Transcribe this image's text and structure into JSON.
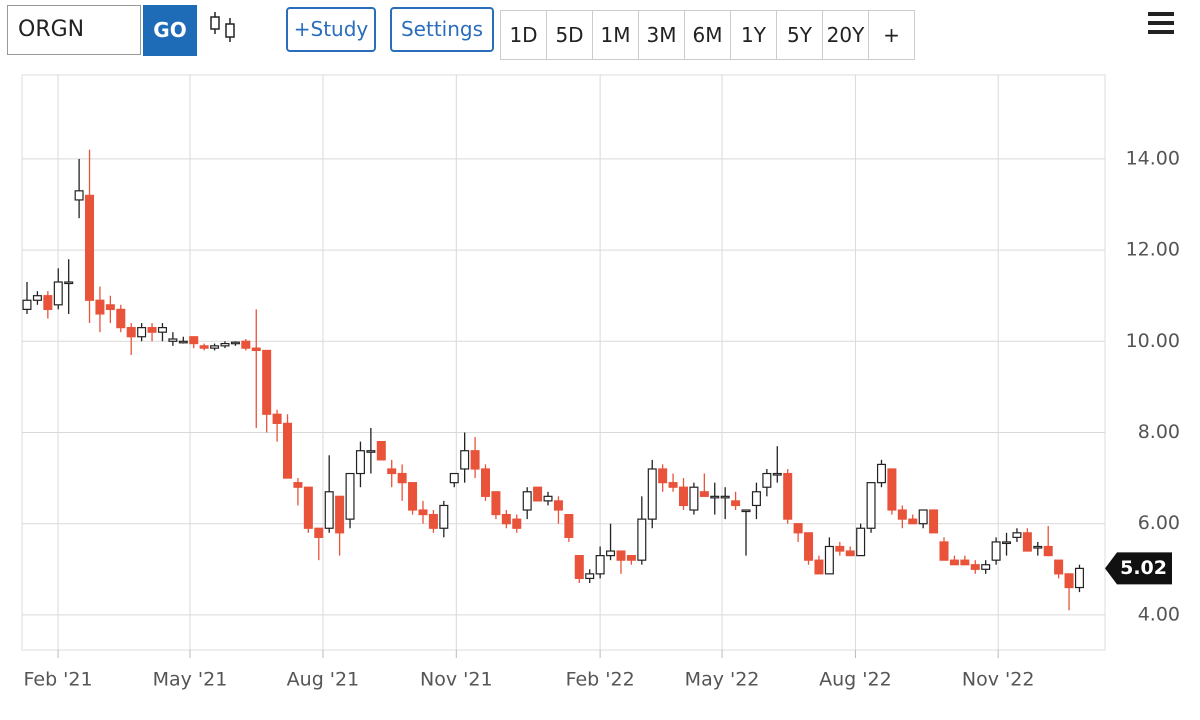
{
  "toolbar": {
    "symbol": "ORGN",
    "go": "GO",
    "study": "+Study",
    "settings": "Settings",
    "ranges": [
      "1D",
      "5D",
      "1M",
      "3M",
      "6M",
      "1Y",
      "5Y",
      "20Y",
      "+"
    ]
  },
  "chart_data": {
    "type": "candlestick",
    "open": [
      10.7,
      10.9,
      11.0,
      10.8,
      11.3,
      13.1,
      13.2,
      10.9,
      10.8,
      10.7,
      10.3,
      10.1,
      10.3,
      10.2,
      10.0,
      10.0,
      10.1,
      9.9,
      9.85,
      9.9,
      9.95,
      10.0,
      9.85,
      9.8,
      8.4,
      8.2,
      6.9,
      6.8,
      5.9,
      5.9,
      6.6,
      6.1,
      7.1,
      7.6,
      7.8,
      7.2,
      7.1,
      6.9,
      6.3,
      6.2,
      5.9,
      6.9,
      7.2,
      7.6,
      7.2,
      6.7,
      6.2,
      6.1,
      6.3,
      6.8,
      6.5,
      6.5,
      6.2,
      5.3,
      4.8,
      4.9,
      5.3,
      5.4,
      5.3,
      5.2,
      6.1,
      7.2,
      6.9,
      6.8,
      6.3,
      6.7,
      6.6,
      6.6,
      6.5,
      6.3,
      6.4,
      6.8,
      7.1,
      7.1,
      6.0,
      5.8,
      5.2,
      4.9,
      5.5,
      5.4,
      5.3,
      5.9,
      6.9,
      7.2,
      6.3,
      6.1,
      6.0,
      6.3,
      5.6,
      5.2,
      5.2,
      5.1,
      5.0,
      5.2,
      5.6,
      5.7,
      5.8,
      5.5,
      5.5,
      5.2,
      4.9,
      4.6
    ],
    "high": [
      11.3,
      11.1,
      11.1,
      11.6,
      11.8,
      14.0,
      14.2,
      11.2,
      11.0,
      10.8,
      10.4,
      10.4,
      10.4,
      10.4,
      10.2,
      10.1,
      10.1,
      9.95,
      9.95,
      10.0,
      10.0,
      10.05,
      10.7,
      9.8,
      8.5,
      8.4,
      7.0,
      6.8,
      5.9,
      7.5,
      6.6,
      7.1,
      7.8,
      8.1,
      7.8,
      7.4,
      7.3,
      6.9,
      6.5,
      6.3,
      6.5,
      7.1,
      8.0,
      7.9,
      7.3,
      6.7,
      6.3,
      6.2,
      6.8,
      6.8,
      6.7,
      6.6,
      6.2,
      5.3,
      5.0,
      5.5,
      6.0,
      5.4,
      5.3,
      6.6,
      7.4,
      7.3,
      7.1,
      7.0,
      6.9,
      7.1,
      6.9,
      6.8,
      6.7,
      6.3,
      6.9,
      7.2,
      7.7,
      7.2,
      6.0,
      5.8,
      5.3,
      5.7,
      5.6,
      5.5,
      6.0,
      6.9,
      7.4,
      7.2,
      6.4,
      6.2,
      6.3,
      6.3,
      5.7,
      5.3,
      5.3,
      5.2,
      5.2,
      5.7,
      5.8,
      5.9,
      5.9,
      5.6,
      5.95,
      5.2,
      4.9,
      5.1
    ],
    "low": [
      10.6,
      10.8,
      10.5,
      10.7,
      10.6,
      12.7,
      10.4,
      10.2,
      10.4,
      10.2,
      9.7,
      10.0,
      10.0,
      10.0,
      9.9,
      9.95,
      9.85,
      9.8,
      9.8,
      9.85,
      9.9,
      9.8,
      8.1,
      8.0,
      7.8,
      7.0,
      6.4,
      5.8,
      5.2,
      5.8,
      5.3,
      5.9,
      6.8,
      7.1,
      7.4,
      6.8,
      6.5,
      6.2,
      6.0,
      5.8,
      5.7,
      6.8,
      6.9,
      7.0,
      6.5,
      6.1,
      5.9,
      5.8,
      6.1,
      6.5,
      6.4,
      6.0,
      5.6,
      4.7,
      4.7,
      4.8,
      5.2,
      4.9,
      5.1,
      5.1,
      5.9,
      6.7,
      6.7,
      6.3,
      6.2,
      6.6,
      6.2,
      6.1,
      6.3,
      5.3,
      6.1,
      6.6,
      6.9,
      6.0,
      5.6,
      5.1,
      4.9,
      4.9,
      5.3,
      5.3,
      5.3,
      5.8,
      6.8,
      6.2,
      5.9,
      6.0,
      5.9,
      5.8,
      5.2,
      5.1,
      5.1,
      4.9,
      4.9,
      5.1,
      5.3,
      5.6,
      5.4,
      5.3,
      5.3,
      4.8,
      4.1,
      4.5
    ],
    "close": [
      10.9,
      11.0,
      10.7,
      11.3,
      11.3,
      13.3,
      10.9,
      10.6,
      10.7,
      10.3,
      10.1,
      10.3,
      10.2,
      10.3,
      10.05,
      10.0,
      9.95,
      9.85,
      9.9,
      9.95,
      9.98,
      9.85,
      9.8,
      8.4,
      8.2,
      7.0,
      6.8,
      5.9,
      5.7,
      6.7,
      5.8,
      7.1,
      7.6,
      7.6,
      7.4,
      7.1,
      6.9,
      6.3,
      6.2,
      5.9,
      6.4,
      7.1,
      7.6,
      7.2,
      6.6,
      6.2,
      6.0,
      5.9,
      6.7,
      6.5,
      6.6,
      6.3,
      5.7,
      4.8,
      4.9,
      5.3,
      5.4,
      5.2,
      5.2,
      6.1,
      7.2,
      6.9,
      6.8,
      6.4,
      6.8,
      6.6,
      6.6,
      6.6,
      6.4,
      6.3,
      6.7,
      7.1,
      7.1,
      6.1,
      5.8,
      5.2,
      4.9,
      5.5,
      5.4,
      5.3,
      5.9,
      6.9,
      7.3,
      6.3,
      6.1,
      6.0,
      6.3,
      5.8,
      5.2,
      5.1,
      5.1,
      5.0,
      5.1,
      5.6,
      5.6,
      5.8,
      5.4,
      5.5,
      5.3,
      4.9,
      4.6,
      5.02
    ],
    "up_color": "#ffffff",
    "down_color": "#e8533a",
    "xlim": [
      -0.48,
      103.45
    ],
    "xticks": [
      {
        "value": 2.98,
        "label": "Feb '21"
      },
      {
        "value": 15.64,
        "label": "May '21"
      },
      {
        "value": 28.4,
        "label": "Aug '21"
      },
      {
        "value": 41.2,
        "label": "Nov '21"
      },
      {
        "value": 55.0,
        "label": "Feb '22"
      },
      {
        "value": 66.7,
        "label": "May '22"
      },
      {
        "value": 79.5,
        "label": "Aug '22"
      },
      {
        "value": 93.2,
        "label": "Nov '22"
      }
    ],
    "ylim": [
      3.23,
      15.84
    ],
    "yticks": [
      {
        "value": 4,
        "label": "4.00"
      },
      {
        "value": 6,
        "label": "6.00"
      },
      {
        "value": 8,
        "label": "8.00"
      },
      {
        "value": 10,
        "label": "10.00"
      },
      {
        "value": 12,
        "label": "12.00"
      },
      {
        "value": 14,
        "label": "14.00"
      }
    ],
    "last_price": 5.02,
    "grid": true
  }
}
